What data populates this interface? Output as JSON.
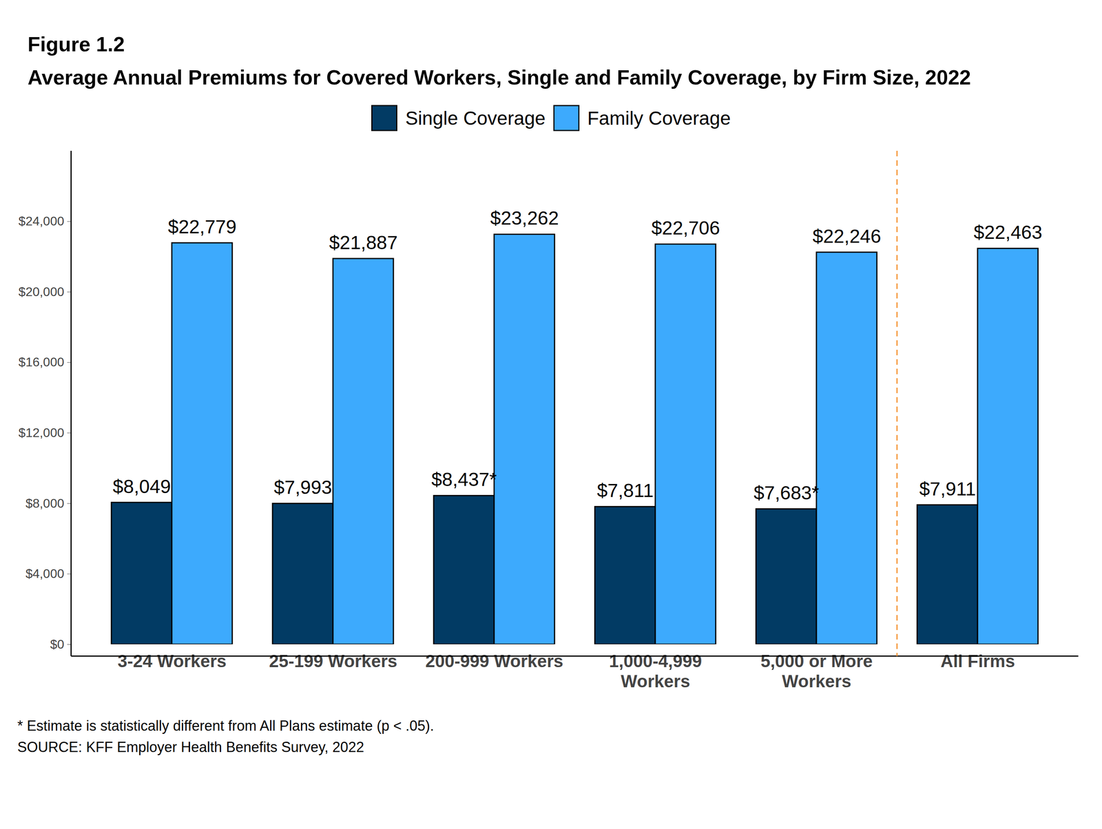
{
  "chart_data": {
    "type": "bar",
    "title": "Figure 1.2",
    "subtitle": "Average Annual Premiums for Covered Workers, Single and Family Coverage, by Firm Size, 2022",
    "categories": [
      "3-24 Workers",
      "25-199 Workers",
      "200-999 Workers",
      "1,000-4,999\nWorkers",
      "5,000 or More\nWorkers",
      "All Firms"
    ],
    "series": [
      {
        "name": "Single Coverage",
        "color": "#023B64",
        "values": [
          8049,
          7993,
          8437,
          7811,
          7683,
          7911
        ],
        "value_labels": [
          "$8,049",
          "$7,993",
          "$8,437*",
          "$7,811",
          "$7,683*",
          "$7,911"
        ]
      },
      {
        "name": "Family Coverage",
        "color": "#3DAAFD",
        "values": [
          22779,
          21887,
          23262,
          22706,
          22246,
          22463
        ],
        "value_labels": [
          "$22,779",
          "$21,887",
          "$23,262",
          "$22,706",
          "$22,246",
          "$22,463"
        ]
      }
    ],
    "ylim": [
      0,
      28000
    ],
    "yticks": [
      {
        "value": 0,
        "label": "$0"
      },
      {
        "value": 4000,
        "label": "$4,000"
      },
      {
        "value": 8000,
        "label": "$8,000"
      },
      {
        "value": 12000,
        "label": "$12,000"
      },
      {
        "value": 16000,
        "label": "$16,000"
      },
      {
        "value": 20000,
        "label": "$20,000"
      },
      {
        "value": 24000,
        "label": "$24,000"
      }
    ],
    "data_labels": true,
    "legend": "top",
    "grid": false,
    "footnote": "* Estimate is statistically different from All Plans estimate (p < .05).",
    "source": "SOURCE: KFF Employer Health Benefits Survey, 2022"
  }
}
